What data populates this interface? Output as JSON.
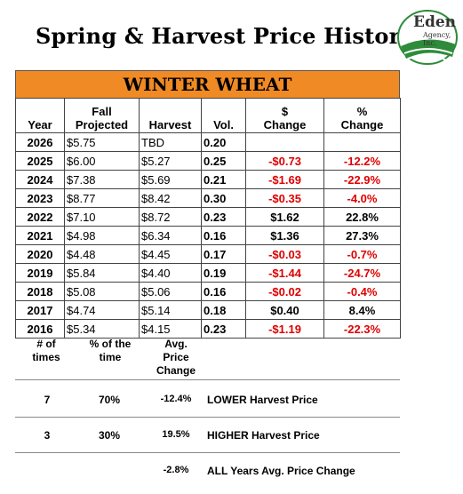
{
  "title": "Spring & Harvest Price History",
  "logo": {
    "name": "Eden",
    "sub": "Agency, Inc."
  },
  "commodity": "WINTER WHEAT",
  "table": {
    "headers": [
      "Year",
      "Fall Projected",
      "Harvest",
      "Vol.",
      "$ Change",
      "% Change"
    ],
    "rows": [
      {
        "year": "2026",
        "fall": "$5.75",
        "harvest": "TBD",
        "vol": "0.20",
        "dchange": "",
        "pchange": "",
        "neg": false
      },
      {
        "year": "2025",
        "fall": "$6.00",
        "harvest": "$5.27",
        "vol": "0.25",
        "dchange": "-$0.73",
        "pchange": "-12.2%",
        "neg": true
      },
      {
        "year": "2024",
        "fall": "$7.38",
        "harvest": "$5.69",
        "vol": "0.21",
        "dchange": "-$1.69",
        "pchange": "-22.9%",
        "neg": true
      },
      {
        "year": "2023",
        "fall": "$8.77",
        "harvest": "$8.42",
        "vol": "0.30",
        "dchange": "-$0.35",
        "pchange": "-4.0%",
        "neg": true
      },
      {
        "year": "2022",
        "fall": "$7.10",
        "harvest": "$8.72",
        "vol": "0.23",
        "dchange": "$1.62",
        "pchange": "22.8%",
        "neg": false
      },
      {
        "year": "2021",
        "fall": "$4.98",
        "harvest": "$6.34",
        "vol": "0.16",
        "dchange": "$1.36",
        "pchange": "27.3%",
        "neg": false
      },
      {
        "year": "2020",
        "fall": "$4.48",
        "harvest": "$4.45",
        "vol": "0.17",
        "dchange": "-$0.03",
        "pchange": "-0.7%",
        "neg": true
      },
      {
        "year": "2019",
        "fall": "$5.84",
        "harvest": "$4.40",
        "vol": "0.19",
        "dchange": "-$1.44",
        "pchange": "-24.7%",
        "neg": true
      },
      {
        "year": "2018",
        "fall": "$5.08",
        "harvest": "$5.06",
        "vol": "0.16",
        "dchange": "-$0.02",
        "pchange": "-0.4%",
        "neg": true
      },
      {
        "year": "2017",
        "fall": "$4.74",
        "harvest": "$5.14",
        "vol": "0.18",
        "dchange": "$0.40",
        "pchange": "8.4%",
        "neg": false
      },
      {
        "year": "2016",
        "fall": "$5.34",
        "harvest": "$4.15",
        "vol": "0.23",
        "dchange": "-$1.19",
        "pchange": "-22.3%",
        "neg": true
      }
    ]
  },
  "summary": {
    "headers": {
      "count": "# of times",
      "percent": "% of the time",
      "avg": "Avg. Price Change"
    },
    "rows": [
      {
        "count": "7",
        "percent": "70%",
        "avg": "-12.4%",
        "label": "LOWER Harvest Price"
      },
      {
        "count": "3",
        "percent": "30%",
        "avg": "19.5%",
        "label": "HIGHER Harvest Price"
      },
      {
        "count": "",
        "percent": "",
        "avg": "-2.8%",
        "label": "ALL Years Avg. Price Change"
      }
    ]
  },
  "colors": {
    "banner": "#f08a24",
    "negative": "#e00000",
    "logo_green": "#2e8b3a"
  }
}
